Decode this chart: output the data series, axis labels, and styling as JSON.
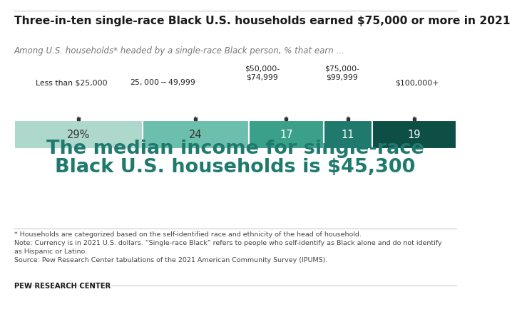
{
  "title": "Three-in-ten single-race Black U.S. households earned $75,000 or more in 2021",
  "subtitle": "Among U.S. households* headed by a single-race Black person, % that earn ...",
  "categories": [
    "Less than $25,000",
    "$25,000-$49,999",
    "$50,000-\n$74,999",
    "$75,000-\n$99,999",
    "$100,000+"
  ],
  "values": [
    29,
    24,
    17,
    11,
    19
  ],
  "labels": [
    "29%",
    "24",
    "17",
    "11",
    "19"
  ],
  "colors": [
    "#aed8cc",
    "#6dbfad",
    "#3aa08a",
    "#1f7a6d",
    "#0d4f45"
  ],
  "label_text_colors": [
    "#333333",
    "#333333",
    "#ffffff",
    "#ffffff",
    "#ffffff"
  ],
  "median_text_line1": "The median income for single-race",
  "median_text_line2": "Black U.S. households is $45,300",
  "footnote1": "* Households are categorized based on the self-identified race and ethnicity of the head of household.",
  "footnote2": "Note: Currency is in 2021 U.S. dollars. “Single-race Black” refers to people who self-identify as Black alone and do not identify",
  "footnote3": "as Hispanic or Latino.",
  "footnote4": "Source: Pew Research Center tabulations of the 2021 American Community Survey (IPUMS).",
  "brand": "PEW RESEARCH CENTER",
  "bg_color": "#ffffff",
  "text_color": "#1a1a1a",
  "median_color": "#1f7a6d",
  "top_line_color": "#cccccc",
  "divider_color": "#cccccc"
}
